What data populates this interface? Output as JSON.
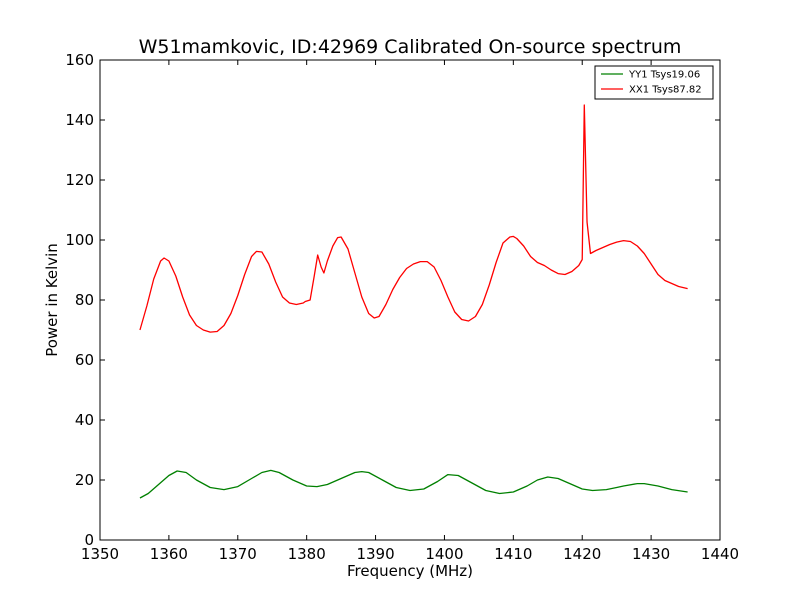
{
  "chart_data": {
    "type": "line",
    "title": "W51mamkovic, ID:42969 Calibrated On-source spectrum",
    "xlabel": "Frequency (MHz)",
    "ylabel": "Power in Kelvin",
    "xlim": [
      1350,
      1440
    ],
    "ylim": [
      0,
      160
    ],
    "xticks": [
      1350,
      1360,
      1370,
      1380,
      1390,
      1400,
      1410,
      1420,
      1430,
      1440
    ],
    "yticks": [
      0,
      20,
      40,
      60,
      80,
      100,
      120,
      140,
      160
    ],
    "grid": false,
    "legend_position": "top-right",
    "series": [
      {
        "name": "YY1 Tsys19.06",
        "color": "#008000",
        "x": [
          1355.8,
          1357.0,
          1358.5,
          1360.0,
          1361.2,
          1362.5,
          1364.0,
          1366.0,
          1368.0,
          1370.0,
          1372.0,
          1373.5,
          1374.8,
          1376.0,
          1378.0,
          1380.0,
          1381.5,
          1383.0,
          1385.0,
          1387.0,
          1388.0,
          1389.0,
          1391.0,
          1393.0,
          1395.0,
          1397.0,
          1399.0,
          1400.5,
          1402.0,
          1404.0,
          1406.0,
          1408.0,
          1410.0,
          1412.0,
          1413.5,
          1415.0,
          1416.5,
          1418.0,
          1420.0,
          1421.5,
          1423.5,
          1425.0,
          1426.0,
          1428.0,
          1429.0,
          1431.0,
          1433.0,
          1435.3
        ],
        "y": [
          14.0,
          15.5,
          18.5,
          21.5,
          23.0,
          22.5,
          20.0,
          17.5,
          16.8,
          17.8,
          20.5,
          22.5,
          23.2,
          22.5,
          20.0,
          18.0,
          17.8,
          18.5,
          20.5,
          22.5,
          22.8,
          22.5,
          20.0,
          17.5,
          16.5,
          17.0,
          19.5,
          21.8,
          21.5,
          19.0,
          16.5,
          15.5,
          16.0,
          18.0,
          20.0,
          21.0,
          20.5,
          19.0,
          17.0,
          16.5,
          16.8,
          17.5,
          18.0,
          18.8,
          18.8,
          18.0,
          16.8,
          16.0
        ]
      },
      {
        "name": "XX1 Tsys87.82",
        "color": "#ff0000",
        "x": [
          1355.8,
          1356.8,
          1357.8,
          1358.8,
          1359.3,
          1360.0,
          1361.0,
          1362.0,
          1363.0,
          1364.0,
          1365.0,
          1366.0,
          1367.0,
          1368.0,
          1369.0,
          1370.0,
          1371.0,
          1372.0,
          1372.7,
          1373.5,
          1374.5,
          1375.5,
          1376.5,
          1377.5,
          1378.5,
          1379.5,
          1379.8,
          1380.5,
          1381.1,
          1381.6,
          1382.1,
          1382.5,
          1383.0,
          1383.8,
          1384.5,
          1385.0,
          1386.0,
          1387.0,
          1388.0,
          1389.0,
          1389.8,
          1390.5,
          1391.5,
          1392.5,
          1393.5,
          1394.5,
          1395.5,
          1396.5,
          1397.5,
          1398.5,
          1399.5,
          1400.5,
          1401.5,
          1402.5,
          1403.5,
          1404.5,
          1405.5,
          1406.5,
          1407.5,
          1408.5,
          1409.5,
          1410.0,
          1410.5,
          1411.5,
          1412.5,
          1413.5,
          1414.5,
          1415.5,
          1416.5,
          1417.5,
          1418.5,
          1419.5,
          1420.0,
          1420.3,
          1420.7,
          1421.2,
          1422.0,
          1423.0,
          1424.0,
          1425.0,
          1426.0,
          1427.0,
          1428.0,
          1429.0,
          1430.0,
          1431.0,
          1432.0,
          1433.0,
          1434.0,
          1435.3
        ],
        "y": [
          70.0,
          78.0,
          87.0,
          93.0,
          94.0,
          93.0,
          88.0,
          81.0,
          75.0,
          71.5,
          70.0,
          69.3,
          69.5,
          71.5,
          75.5,
          81.5,
          88.5,
          94.5,
          96.2,
          96.0,
          92.0,
          86.0,
          81.0,
          79.0,
          78.5,
          79.0,
          79.5,
          80.0,
          88.0,
          95.0,
          91.0,
          89.0,
          93.0,
          98.0,
          100.8,
          101.0,
          97.0,
          89.0,
          81.0,
          75.5,
          74.0,
          74.5,
          78.5,
          83.5,
          87.5,
          90.5,
          92.0,
          92.8,
          92.8,
          91.0,
          86.5,
          81.0,
          76.0,
          73.5,
          73.0,
          74.5,
          78.5,
          85.0,
          92.5,
          99.0,
          101.0,
          101.2,
          100.5,
          98.0,
          94.5,
          92.5,
          91.5,
          90.0,
          88.8,
          88.5,
          89.5,
          91.5,
          93.5,
          145.0,
          106.0,
          95.5,
          96.5,
          97.5,
          98.5,
          99.3,
          99.8,
          99.5,
          98.0,
          95.5,
          92.0,
          88.5,
          86.5,
          85.5,
          84.5,
          83.8
        ]
      }
    ]
  }
}
